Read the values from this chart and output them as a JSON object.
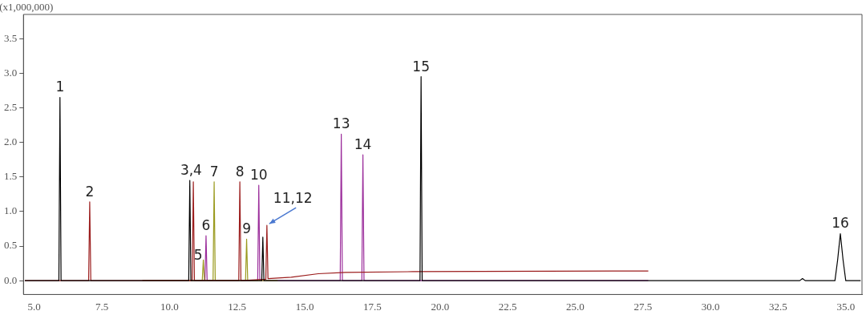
{
  "chart_data": {
    "type": "line",
    "ylabel": "(x1,000,000)",
    "xlim": [
      4.6,
      35.6
    ],
    "ylim": [
      -0.2,
      3.85
    ],
    "xticks": [
      {
        "value": 5,
        "label": "5.0"
      },
      {
        "value": 7.5,
        "label": "7.5"
      },
      {
        "value": 10,
        "label": "10.0"
      },
      {
        "value": 12.5,
        "label": "12.5"
      },
      {
        "value": 15,
        "label": "15.0"
      },
      {
        "value": 17.5,
        "label": "17.5"
      },
      {
        "value": 20,
        "label": "20.0"
      },
      {
        "value": 22.5,
        "label": "22.5"
      },
      {
        "value": 25,
        "label": "25.0"
      },
      {
        "value": 27.5,
        "label": "27.5"
      },
      {
        "value": 30,
        "label": "30.0"
      },
      {
        "value": 32.5,
        "label": "32.5"
      },
      {
        "value": 35,
        "label": "35.0"
      }
    ],
    "yticks": [
      {
        "value": 0,
        "label": "0.0"
      },
      {
        "value": 0.5,
        "label": "0.5"
      },
      {
        "value": 1,
        "label": "1.0"
      },
      {
        "value": 1.5,
        "label": "1.5"
      },
      {
        "value": 2,
        "label": "2.0"
      },
      {
        "value": 2.5,
        "label": "2.5"
      },
      {
        "value": 3,
        "label": "3.0"
      },
      {
        "value": 3.5,
        "label": "3.5"
      }
    ],
    "grid": false,
    "legend": false,
    "marker": "none",
    "line_style": "solid",
    "series": [
      {
        "color": "#000000",
        "x": [
          4.65,
          5.91,
          5.95,
          5.99,
          10.71,
          10.75,
          10.79,
          13.41,
          13.45,
          13.49,
          19.26,
          19.3,
          19.34,
          33.3,
          33.4,
          33.5,
          34.6,
          34.7,
          34.8,
          34.9,
          35.0,
          35.55
        ],
        "values": [
          0,
          0,
          2.65,
          0,
          0,
          1.45,
          0,
          0,
          0.63,
          0,
          0,
          2.95,
          0,
          0,
          0.03,
          0,
          0,
          0.3,
          0.68,
          0.3,
          0,
          0
        ]
      },
      {
        "color": "#9b1c1c",
        "x": [
          4.65,
          7.01,
          7.05,
          7.09,
          10.84,
          10.88,
          10.92,
          12.56,
          12.6,
          12.64,
          13.56,
          13.6,
          13.64,
          14.5,
          15.5,
          16.5,
          19.0,
          27.7
        ],
        "values": [
          0,
          0,
          1.14,
          0,
          0,
          1.43,
          0,
          0,
          1.43,
          0,
          0.02,
          0.8,
          0.03,
          0.05,
          0.1,
          0.12,
          0.13,
          0.14
        ]
      },
      {
        "color": "#9a9a1e",
        "x": [
          9.0,
          11.21,
          11.25,
          11.29,
          11.61,
          11.65,
          11.69,
          12.81,
          12.85,
          12.89,
          14.0
        ],
        "values": [
          0,
          0,
          0.3,
          0,
          0,
          1.43,
          0,
          0,
          0.6,
          0,
          0
        ]
      },
      {
        "color": "#9b2d9b",
        "x": [
          9.0,
          11.31,
          11.35,
          11.39,
          13.26,
          13.3,
          13.34,
          16.31,
          16.35,
          16.39,
          17.11,
          17.15,
          17.19,
          27.7
        ],
        "values": [
          0,
          0,
          0.65,
          0,
          0,
          1.38,
          0,
          0,
          2.12,
          0,
          0,
          1.82,
          0,
          0
        ]
      }
    ],
    "annotations": [
      {
        "text": "1",
        "x": 5.95,
        "y": 2.65
      },
      {
        "text": "2",
        "x": 7.05,
        "y": 1.14
      },
      {
        "text": "3,4",
        "x": 10.8,
        "y": 1.45
      },
      {
        "text": "5",
        "x": 11.25,
        "y": 0.3
      },
      {
        "text": "6",
        "x": 11.35,
        "y": 0.65
      },
      {
        "text": "7",
        "x": 11.65,
        "y": 1.43
      },
      {
        "text": "8",
        "x": 12.6,
        "y": 1.43
      },
      {
        "text": "9",
        "x": 12.85,
        "y": 0.6
      },
      {
        "text": "10",
        "x": 13.3,
        "y": 1.38
      },
      {
        "text": "11,12",
        "x": 13.6,
        "y": 0.8
      },
      {
        "text": "13",
        "x": 16.35,
        "y": 2.12
      },
      {
        "text": "14",
        "x": 17.15,
        "y": 1.82
      },
      {
        "text": "15",
        "x": 19.3,
        "y": 2.95
      },
      {
        "text": "16",
        "x": 34.8,
        "y": 0.68
      }
    ]
  }
}
